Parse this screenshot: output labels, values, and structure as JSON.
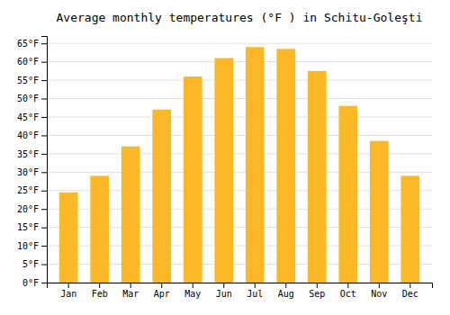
{
  "chart_data": {
    "type": "bar",
    "title": "Average monthly temperatures (°F ) in Schitu-Goleşti",
    "categories": [
      "Jan",
      "Feb",
      "Mar",
      "Apr",
      "May",
      "Jun",
      "Jul",
      "Aug",
      "Sep",
      "Oct",
      "Nov",
      "Dec"
    ],
    "values": [
      24.5,
      29.0,
      37.0,
      47.0,
      56.0,
      61.0,
      64.0,
      63.5,
      57.5,
      48.0,
      38.5,
      29.0
    ],
    "color": "#FDB827",
    "ylim": [
      0,
      67
    ],
    "yticks": [
      {
        "value": 0,
        "label": "0°F"
      },
      {
        "value": 5,
        "label": "5°F"
      },
      {
        "value": 10,
        "label": "10°F"
      },
      {
        "value": 15,
        "label": "15°F"
      },
      {
        "value": 20,
        "label": "20°F"
      },
      {
        "value": 25,
        "label": "25°F"
      },
      {
        "value": 30,
        "label": "30°F"
      },
      {
        "value": 35,
        "label": "35°F"
      },
      {
        "value": 40,
        "label": "40°F"
      },
      {
        "value": 45,
        "label": "45°F"
      },
      {
        "value": 50,
        "label": "50°F"
      },
      {
        "value": 55,
        "label": "55°F"
      },
      {
        "value": 60,
        "label": "60°F"
      },
      {
        "value": 65,
        "label": "65°F"
      }
    ],
    "grid": true
  }
}
